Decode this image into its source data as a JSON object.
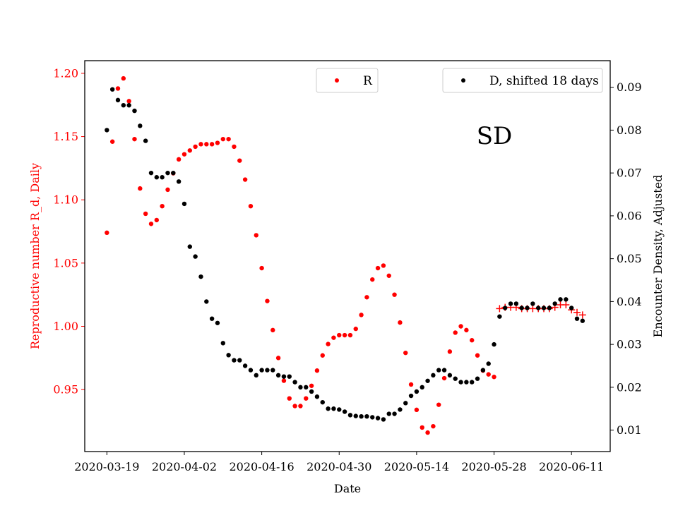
{
  "chart_data": {
    "type": "scatter",
    "title": "",
    "annotation": "SD",
    "xlabel": "Date",
    "ylabel_left": "Reproductive number R_d, Daily",
    "ylabel_right": "Encounter Density, Adjusted",
    "x_ticks": [
      "2020-03-19",
      "2020-04-02",
      "2020-04-16",
      "2020-04-30",
      "2020-05-14",
      "2020-05-28",
      "2020-06-11"
    ],
    "y_left_ticks": [
      "0.95",
      "1.00",
      "1.05",
      "1.10",
      "1.15",
      "1.20"
    ],
    "y_right_ticks": [
      "0.01",
      "0.02",
      "0.03",
      "0.04",
      "0.05",
      "0.06",
      "0.07",
      "0.08",
      "0.09"
    ],
    "ylim_left": [
      0.901,
      1.21
    ],
    "ylim_right": [
      0.005,
      0.0962
    ],
    "x_start": "2020-03-15",
    "x_end": "2020-06-18",
    "colors": {
      "R": "#ff0000",
      "D": "#000000",
      "left_axis": "#ff0000",
      "right_axis": "#000000"
    },
    "legend": {
      "r_label": "R",
      "d_label": "D, shifted 18 days"
    },
    "series": [
      {
        "name": "R",
        "color": "#ff0000",
        "marker": "dot",
        "x": [
          "2020-03-19",
          "2020-03-20",
          "2020-03-21",
          "2020-03-22",
          "2020-03-23",
          "2020-03-24",
          "2020-03-25",
          "2020-03-26",
          "2020-03-27",
          "2020-03-28",
          "2020-03-29",
          "2020-03-30",
          "2020-03-31",
          "2020-04-01",
          "2020-04-02",
          "2020-04-03",
          "2020-04-04",
          "2020-04-05",
          "2020-04-06",
          "2020-04-07",
          "2020-04-08",
          "2020-04-09",
          "2020-04-10",
          "2020-04-11",
          "2020-04-12",
          "2020-04-13",
          "2020-04-14",
          "2020-04-15",
          "2020-04-16",
          "2020-04-17",
          "2020-04-18",
          "2020-04-19",
          "2020-04-20",
          "2020-04-21",
          "2020-04-22",
          "2020-04-23",
          "2020-04-24",
          "2020-04-25",
          "2020-04-26",
          "2020-04-27",
          "2020-04-28",
          "2020-04-29",
          "2020-04-30",
          "2020-05-01",
          "2020-05-02",
          "2020-05-03",
          "2020-05-04",
          "2020-05-05",
          "2020-05-06",
          "2020-05-07",
          "2020-05-08",
          "2020-05-09",
          "2020-05-10",
          "2020-05-11",
          "2020-05-12",
          "2020-05-13",
          "2020-05-14",
          "2020-05-15",
          "2020-05-16",
          "2020-05-17",
          "2020-05-18",
          "2020-05-19",
          "2020-05-20",
          "2020-05-21",
          "2020-05-22",
          "2020-05-23",
          "2020-05-24",
          "2020-05-25",
          "2020-05-26",
          "2020-05-27",
          "2020-05-28"
        ],
        "values": [
          1.074,
          1.146,
          1.188,
          1.196,
          1.178,
          1.148,
          1.109,
          1.089,
          1.081,
          1.084,
          1.095,
          1.108,
          1.121,
          1.132,
          1.136,
          1.139,
          1.142,
          1.144,
          1.144,
          1.144,
          1.145,
          1.148,
          1.148,
          1.142,
          1.131,
          1.116,
          1.095,
          1.072,
          1.046,
          1.02,
          0.997,
          0.975,
          0.957,
          0.943,
          0.937,
          0.937,
          0.943,
          0.953,
          0.965,
          0.977,
          0.986,
          0.991,
          0.993,
          0.993,
          0.993,
          0.998,
          1.009,
          1.023,
          1.037,
          1.046,
          1.048,
          1.04,
          1.025,
          1.003,
          0.979,
          0.954,
          0.934,
          0.92,
          0.916,
          0.921,
          0.938,
          0.959,
          0.98,
          0.995,
          1.0,
          0.997,
          0.989,
          0.977,
          0.965,
          0.962,
          0.96
        ]
      },
      {
        "name": "R",
        "color": "#ff0000",
        "marker": "plus",
        "x": [
          "2020-05-29",
          "2020-05-30",
          "2020-05-31",
          "2020-06-01",
          "2020-06-02",
          "2020-06-03",
          "2020-06-04",
          "2020-06-05",
          "2020-06-06",
          "2020-06-07",
          "2020-06-08",
          "2020-06-09",
          "2020-06-10",
          "2020-06-11",
          "2020-06-12",
          "2020-06-13"
        ],
        "values": [
          1.014,
          1.015,
          1.015,
          1.015,
          1.014,
          1.014,
          1.014,
          1.014,
          1.014,
          1.014,
          1.015,
          1.017,
          1.017,
          1.013,
          1.011,
          1.009
        ]
      },
      {
        "name": "D, shifted 18 days",
        "color": "#000000",
        "marker": "dot",
        "x": [
          "2020-03-19",
          "2020-03-20",
          "2020-03-21",
          "2020-03-22",
          "2020-03-23",
          "2020-03-24",
          "2020-03-25",
          "2020-03-26",
          "2020-03-27",
          "2020-03-28",
          "2020-03-29",
          "2020-03-30",
          "2020-03-31",
          "2020-04-01",
          "2020-04-02",
          "2020-04-03",
          "2020-04-04",
          "2020-04-05",
          "2020-04-06",
          "2020-04-07",
          "2020-04-08",
          "2020-04-09",
          "2020-04-10",
          "2020-04-11",
          "2020-04-12",
          "2020-04-13",
          "2020-04-14",
          "2020-04-15",
          "2020-04-16",
          "2020-04-17",
          "2020-04-18",
          "2020-04-19",
          "2020-04-20",
          "2020-04-21",
          "2020-04-22",
          "2020-04-23",
          "2020-04-24",
          "2020-04-25",
          "2020-04-26",
          "2020-04-27",
          "2020-04-28",
          "2020-04-29",
          "2020-04-30",
          "2020-05-01",
          "2020-05-02",
          "2020-05-03",
          "2020-05-04",
          "2020-05-05",
          "2020-05-06",
          "2020-05-07",
          "2020-05-08",
          "2020-05-09",
          "2020-05-10",
          "2020-05-11",
          "2020-05-12",
          "2020-05-13",
          "2020-05-14",
          "2020-05-15",
          "2020-05-16",
          "2020-05-17",
          "2020-05-18",
          "2020-05-19",
          "2020-05-20",
          "2020-05-21",
          "2020-05-22",
          "2020-05-23",
          "2020-05-24",
          "2020-05-25",
          "2020-05-26",
          "2020-05-27",
          "2020-05-28",
          "2020-05-29",
          "2020-05-30",
          "2020-05-31",
          "2020-06-01",
          "2020-06-02",
          "2020-06-03",
          "2020-06-04",
          "2020-06-05",
          "2020-06-06",
          "2020-06-07",
          "2020-06-08",
          "2020-06-09",
          "2020-06-10",
          "2020-06-11",
          "2020-06-12",
          "2020-06-13"
        ],
        "values": [
          0.08,
          0.0895,
          0.087,
          0.0858,
          0.0858,
          0.0845,
          0.081,
          0.0775,
          0.07,
          0.069,
          0.069,
          0.07,
          0.07,
          0.068,
          0.0628,
          0.0528,
          0.0505,
          0.0458,
          0.04,
          0.036,
          0.035,
          0.0303,
          0.0275,
          0.0263,
          0.0263,
          0.025,
          0.024,
          0.0228,
          0.024,
          0.024,
          0.024,
          0.0228,
          0.0225,
          0.0225,
          0.0212,
          0.02,
          0.02,
          0.019,
          0.0178,
          0.0165,
          0.015,
          0.015,
          0.0148,
          0.0143,
          0.0135,
          0.0133,
          0.0132,
          0.0132,
          0.013,
          0.0128,
          0.0125,
          0.0138,
          0.0138,
          0.0148,
          0.0163,
          0.018,
          0.019,
          0.02,
          0.0215,
          0.0228,
          0.024,
          0.024,
          0.0228,
          0.022,
          0.0212,
          0.0212,
          0.0212,
          0.022,
          0.024,
          0.0255,
          0.03,
          0.0365,
          0.0385,
          0.0395,
          0.0395,
          0.0385,
          0.0385,
          0.0395,
          0.0385,
          0.0385,
          0.0385,
          0.0395,
          0.0405,
          0.0405,
          0.0385,
          0.036,
          0.0355
        ]
      }
    ]
  }
}
